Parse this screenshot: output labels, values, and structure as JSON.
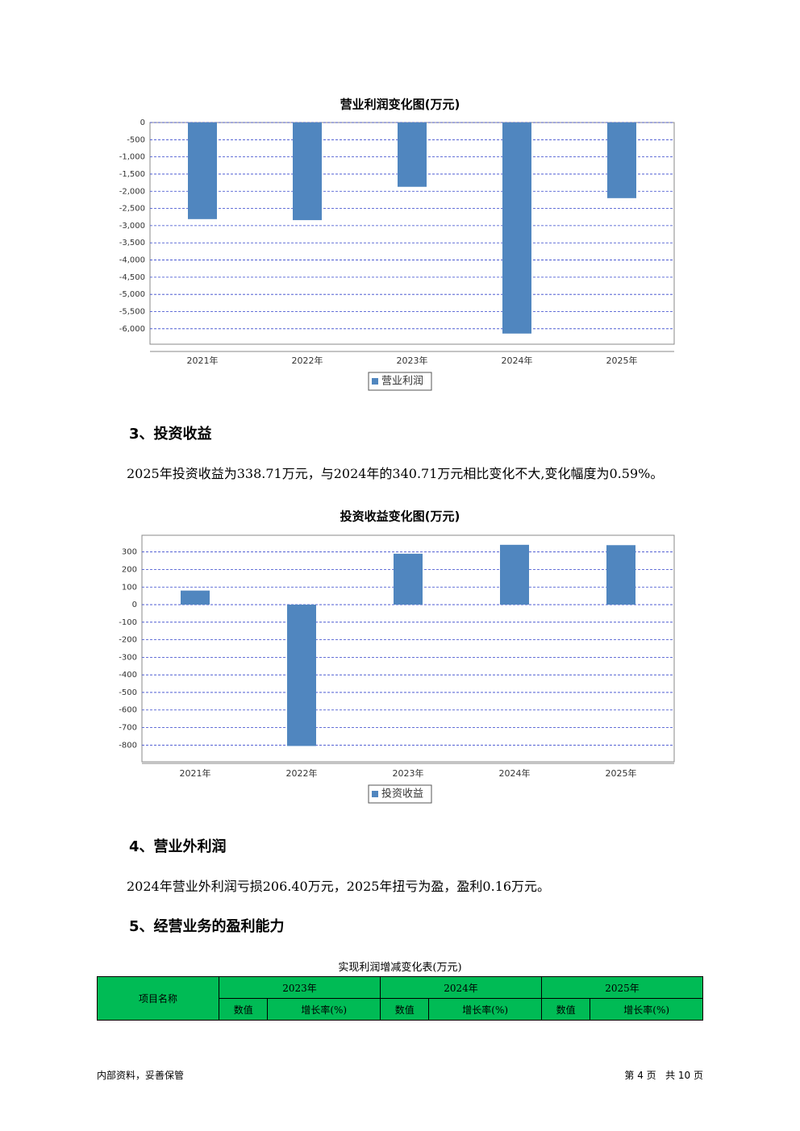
{
  "chart_data": [
    {
      "type": "bar",
      "title": "营业利润变化图(万元)",
      "categories": [
        "2021年",
        "2022年",
        "2023年",
        "2024年",
        "2025年"
      ],
      "series": [
        {
          "name": "营业利润",
          "color": "#5086bf",
          "values": [
            -2810,
            -2840,
            -1870,
            -6140,
            -2200
          ]
        }
      ],
      "ylim": [
        -6450,
        0
      ],
      "yticks": [
        0,
        -500,
        {
          "value": -1000,
          "label": "-1,000"
        },
        {
          "value": -1500,
          "label": "-1,500"
        },
        {
          "value": -2000,
          "label": "-2,000"
        },
        {
          "value": -2500,
          "label": "-2,500"
        },
        {
          "value": -3000,
          "label": "-3,000"
        },
        {
          "value": -3500,
          "label": "-3,500"
        },
        {
          "value": -4000,
          "label": "-4,000"
        },
        {
          "value": -4500,
          "label": "-4,500"
        },
        {
          "value": -5000,
          "label": "-5,000"
        },
        {
          "value": -5500,
          "label": "-5,500"
        },
        {
          "value": -6000,
          "label": "-6,000"
        }
      ],
      "grid": true,
      "legend": "bottom"
    },
    {
      "type": "bar",
      "title": "投资收益变化图(万元)",
      "categories": [
        "2021年",
        "2022年",
        "2023年",
        "2024年",
        "2025年"
      ],
      "series": [
        {
          "name": "投资收益",
          "color": "#5086bf",
          "values": [
            80,
            -805,
            290,
            340.71,
            338.71
          ]
        }
      ],
      "ylim": [
        -895,
        395
      ],
      "yticks": [
        300,
        200,
        100,
        0,
        -100,
        -200,
        -300,
        -400,
        -500,
        -600,
        -700,
        -800
      ],
      "grid": true,
      "legend": "bottom"
    }
  ],
  "sections": [
    {
      "heading": "3、投资收益",
      "text": "2025年投资收益为338.71万元，与2024年的340.71万元相比变化不大,变化幅度为0.59%。"
    },
    {
      "heading": "4、营业外利润",
      "text": "2024年营业外利润亏损206.40万元，2025年扭亏为盈，盈利0.16万元。"
    },
    {
      "heading": "5、经营业务的盈利能力"
    }
  ],
  "table": {
    "title": "实现利润增减变化表(万元)",
    "corner": "项目名称",
    "years": [
      "2023年",
      "2024年",
      "2025年"
    ],
    "subheaders": [
      "数值",
      "增长率(%)",
      "数值",
      "增长率(%)",
      "数值",
      "增长率(%)"
    ]
  },
  "footer": {
    "left": "内部资料，妥善保管",
    "right": "第 4 页   共 10 页"
  }
}
